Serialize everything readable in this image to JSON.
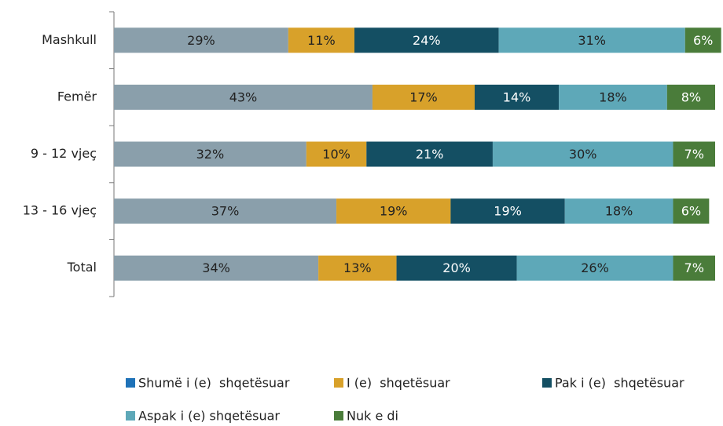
{
  "chart_data": {
    "type": "stacked-bar-horizontal",
    "categories": [
      "Mashkull",
      "Femër",
      "9 - 12 vjeç",
      "13 - 16 vjeç",
      "Total"
    ],
    "xlim": [
      0,
      100
    ],
    "series": [
      {
        "name": "Shumë i (e)  shqetësuar",
        "color": "#8a9fab",
        "legend_color": "#1f72b8",
        "values": [
          29,
          43,
          32,
          37,
          34
        ],
        "value_labels": [
          "29%",
          "43%",
          "32%",
          "37%",
          "34%"
        ]
      },
      {
        "name": "I (e)  shqetësuar",
        "color": "#d8a12a",
        "values": [
          11,
          17,
          10,
          19,
          13
        ],
        "value_labels": [
          "11%",
          "17%",
          "10%",
          "19%",
          "13%"
        ]
      },
      {
        "name": "Pak i (e)  shqetësuar",
        "color": "#144f63",
        "values": [
          24,
          14,
          21,
          19,
          20
        ],
        "value_labels": [
          "24%",
          "14%",
          "21%",
          "19%",
          "20%"
        ]
      },
      {
        "name": "Aspak i (e) shqetësuar",
        "color": "#5ea8b8",
        "values": [
          31,
          18,
          30,
          18,
          26
        ],
        "value_labels": [
          "31%",
          "18%",
          "30%",
          "18%",
          "26%"
        ]
      },
      {
        "name": "Nuk e di",
        "color": "#4a7c3a",
        "values": [
          6,
          8,
          7,
          6,
          7
        ],
        "value_labels": [
          "6%",
          "8%",
          "7%",
          "6%",
          "7%"
        ]
      }
    ]
  }
}
